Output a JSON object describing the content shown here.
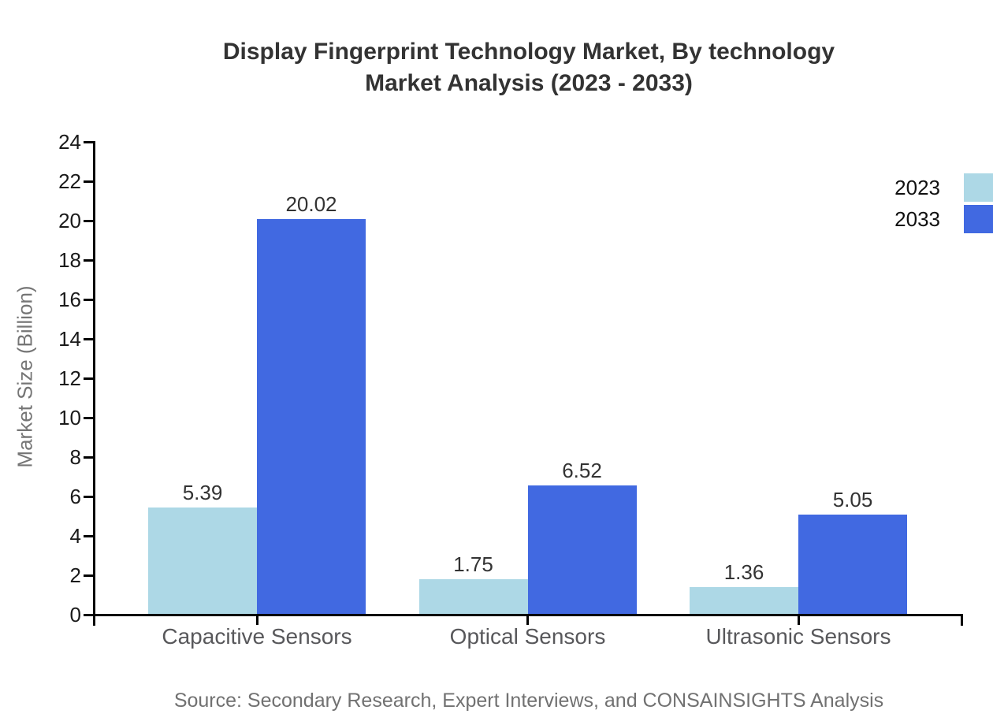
{
  "title": {
    "line1": "Display Fingerprint Technology Market, By technology",
    "line2": "Market Analysis (2023 - 2033)"
  },
  "source": "Source: Secondary Research, Expert Interviews, and CONSAINSIGHTS Analysis",
  "colors": {
    "series_2023": "#ADD8E6",
    "series_2033": "#4169E1",
    "axis": "#000000",
    "title_text": "#333333",
    "tick_text": "#1a1a1a",
    "category_text": "#58585b",
    "muted_text": "#757575"
  },
  "chart_data": {
    "type": "bar",
    "title": "Display Fingerprint Technology Market, By technology Market Analysis (2023 - 2033)",
    "categories": [
      "Capacitive Sensors",
      "Optical Sensors",
      "Ultrasonic Sensors"
    ],
    "series": [
      {
        "name": "2023",
        "color": "#ADD8E6",
        "values": [
          5.39,
          1.75,
          1.36
        ]
      },
      {
        "name": "2033",
        "color": "#4169E1",
        "values": [
          20.02,
          6.52,
          5.05
        ]
      }
    ],
    "xlabel": "",
    "ylabel": "Market Size (Billion)",
    "ylim": [
      0,
      24
    ],
    "ytick_step": 2,
    "grid": false,
    "value_labels": true,
    "legend_position": "top-right"
  }
}
